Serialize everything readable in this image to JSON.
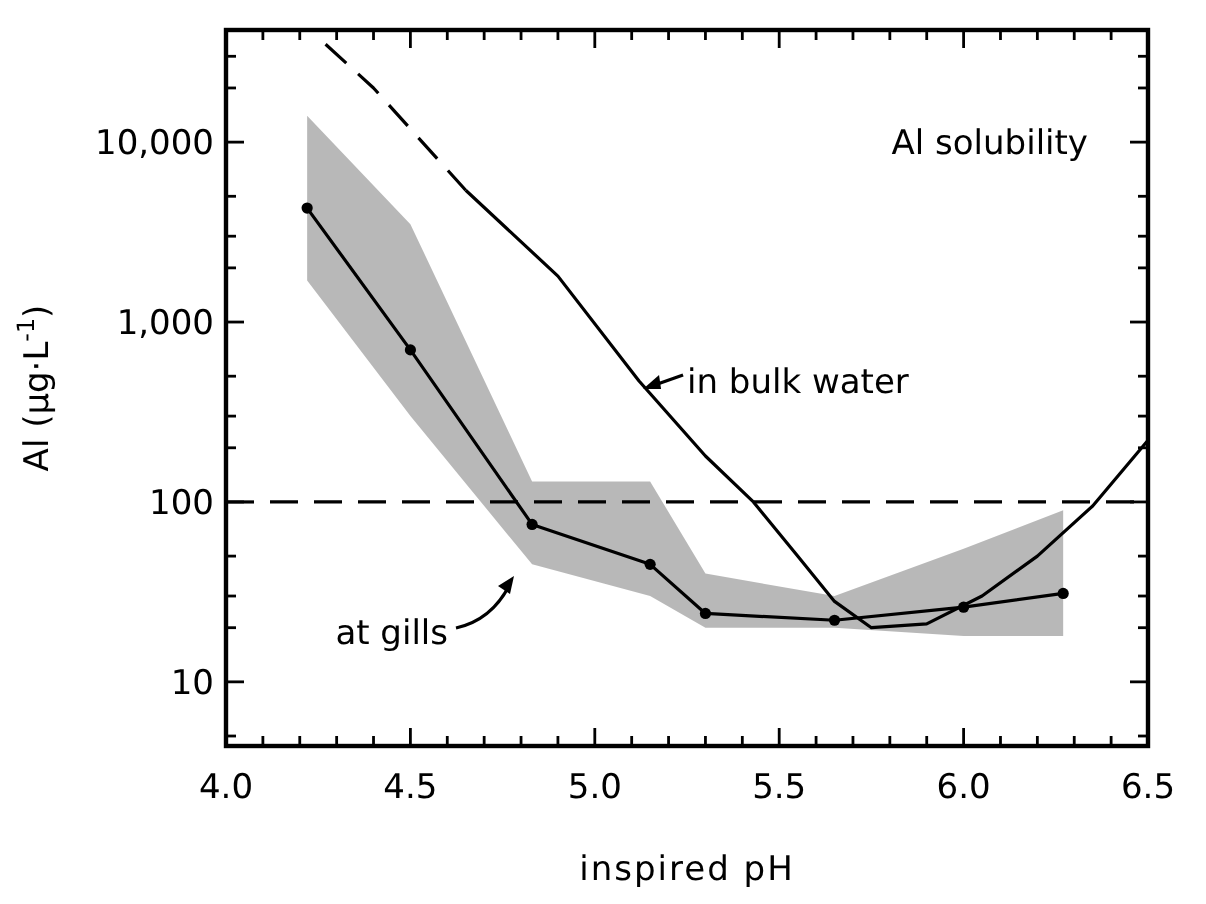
{
  "chart_data": {
    "type": "line",
    "xlabel": "inspired pH",
    "ylabel": "Al (μg·L$^{-1}$)",
    "log": "y",
    "xlim": [
      4.0,
      6.5
    ],
    "ylim": [
      4.4,
      42000
    ],
    "xticks": [
      {
        "value": 4,
        "label": "4.0"
      },
      {
        "value": 4.1,
        "label": null
      },
      {
        "value": 4.2,
        "label": null
      },
      {
        "value": 4.3,
        "label": null
      },
      {
        "value": 4.4,
        "label": null
      },
      {
        "value": 4.5,
        "label": "4.5"
      },
      {
        "value": 4.6,
        "label": null
      },
      {
        "value": 4.7,
        "label": null
      },
      {
        "value": 4.8,
        "label": null
      },
      {
        "value": 4.9,
        "label": null
      },
      {
        "value": 5,
        "label": "5.0"
      },
      {
        "value": 5.1,
        "label": null
      },
      {
        "value": 5.2,
        "label": null
      },
      {
        "value": 5.3,
        "label": null
      },
      {
        "value": 5.4,
        "label": null
      },
      {
        "value": 5.5,
        "label": "5.5"
      },
      {
        "value": 5.6,
        "label": null
      },
      {
        "value": 5.7,
        "label": null
      },
      {
        "value": 5.8,
        "label": null
      },
      {
        "value": 5.9,
        "label": null
      },
      {
        "value": 6,
        "label": "6.0"
      },
      {
        "value": 6.1,
        "label": null
      },
      {
        "value": 6.2,
        "label": null
      },
      {
        "value": 6.3,
        "label": null
      },
      {
        "value": 6.4,
        "label": null
      },
      {
        "value": 6.5,
        "label": "6.5"
      }
    ],
    "yticks": [
      {
        "value": 5,
        "label": null
      },
      {
        "value": 10,
        "label": "10"
      },
      {
        "value": 20,
        "label": null
      },
      {
        "value": 30,
        "label": null
      },
      {
        "value": 50,
        "label": null
      },
      {
        "value": 100,
        "label": "100"
      },
      {
        "value": 200,
        "label": null
      },
      {
        "value": 300,
        "label": null
      },
      {
        "value": 500,
        "label": null
      },
      {
        "value": 1000,
        "label": "1,000"
      },
      {
        "value": 2000,
        "label": null
      },
      {
        "value": 3000,
        "label": null
      },
      {
        "value": 5000,
        "label": null
      },
      {
        "value": 10000,
        "label": "10,000"
      },
      {
        "value": 20000,
        "label": null
      },
      {
        "value": 30000,
        "label": null
      }
    ],
    "series": [
      {
        "color": "#000000",
        "x": [
          4.22,
          4.5,
          4.83,
          5.15,
          5.3,
          5.65,
          6.0,
          6.27
        ],
        "lower": [
          1700,
          300,
          45,
          30,
          20,
          20,
          18,
          18
        ],
        "upper": [
          14000,
          3500,
          130,
          130,
          40,
          30,
          55,
          90
        ],
        "values": [
          4300,
          700,
          75,
          45,
          24,
          22,
          26,
          31
        ],
        "marker": "circle",
        "line_style": "solid"
      },
      {
        "color": "#000000",
        "x": [
          4.27,
          4.4,
          4.65
        ],
        "values": [
          35000,
          20000,
          5400
        ],
        "marker": "none",
        "line_style": "dashed"
      },
      {
        "color": "#000000",
        "x": [
          4.65,
          4.9,
          5.12,
          5.3,
          5.43,
          5.55,
          5.65,
          5.75,
          5.9,
          6.05,
          6.2,
          6.35,
          6.5
        ],
        "values": [
          5400,
          1800,
          470,
          180,
          100,
          50,
          28,
          20,
          21,
          30,
          50,
          95,
          220
        ],
        "marker": "none",
        "line_style": "solid"
      }
    ],
    "ref_lines": [
      {
        "axis": "y",
        "value": 100,
        "line_style": "dashed",
        "color": "#000000"
      }
    ],
    "annotations": [
      "Al solubility",
      {
        "text": "in bulk water",
        "x": 5.12,
        "y": 470
      },
      "at gills"
    ]
  }
}
